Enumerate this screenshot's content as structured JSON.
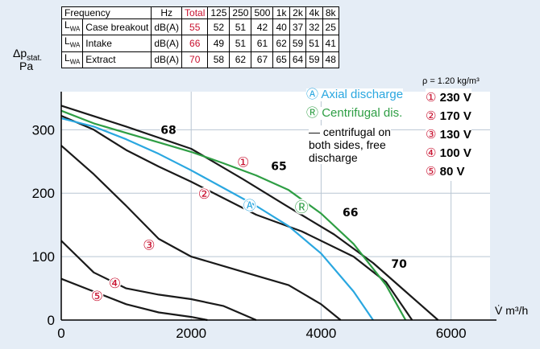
{
  "table": {
    "header": [
      "Frequency",
      "Hz",
      "Total",
      "125",
      "250",
      "500",
      "1k",
      "2k",
      "4k",
      "8k"
    ],
    "rows": [
      {
        "symbol": "L",
        "sub": "WA",
        "label": "Case breakout",
        "unit": "dB(A)",
        "total": "55",
        "values": [
          "52",
          "51",
          "42",
          "40",
          "37",
          "32",
          "25"
        ]
      },
      {
        "symbol": "L",
        "sub": "WA",
        "label": "Intake",
        "unit": "dB(A)",
        "total": "66",
        "values": [
          "49",
          "51",
          "61",
          "62",
          "59",
          "51",
          "41"
        ]
      },
      {
        "symbol": "L",
        "sub": "WA",
        "label": "Extract",
        "unit": "dB(A)",
        "total": "70",
        "values": [
          "58",
          "62",
          "67",
          "65",
          "64",
          "59",
          "48"
        ]
      }
    ]
  },
  "ylabel": {
    "symbol": "Δp",
    "sub": "stat.",
    "unit": "Pa"
  },
  "xlabel": "V̇ m³/h",
  "density": "ρ = 1.20 kg/m³",
  "legend": {
    "axial": {
      "symbol": "Ⓐ",
      "label": "Axial discharge"
    },
    "centrifugal": {
      "symbol": "Ⓡ",
      "label": "Centrifugal dis."
    },
    "both_lines": [
      "— centrifugal on",
      "both sides, free",
      "discharge"
    ],
    "voltages": [
      {
        "symbol": "①",
        "label": "230 V"
      },
      {
        "symbol": "②",
        "label": "170 V"
      },
      {
        "symbol": "③",
        "label": "130 V"
      },
      {
        "symbol": "④",
        "label": "100 V"
      },
      {
        "symbol": "⑤",
        "label": "80 V"
      }
    ]
  },
  "colors": {
    "background": "#e5edf6",
    "plot": "#ffffff",
    "black_curve": "#1a1a1a",
    "axial": "#2aa7e0",
    "centrifugal": "#2e9e44",
    "red": "#c8102e",
    "grid": "#b9c6d3"
  },
  "chart_data": {
    "type": "line",
    "xlabel": "V̇ m³/h",
    "ylabel": "Δpstat. Pa",
    "xlim": [
      0,
      6600
    ],
    "ylim": [
      0,
      360
    ],
    "xticks": [
      0,
      2000,
      4000,
      6000
    ],
    "yticks": [
      0,
      100,
      200,
      300
    ],
    "grid": true,
    "series": [
      {
        "name": "230 V",
        "color": "black",
        "x": [
          0,
          1000,
          2000,
          2800,
          3500,
          4200,
          4800,
          5300,
          5800
        ],
        "y": [
          338,
          305,
          270,
          222,
          178,
          135,
          90,
          45,
          0
        ]
      },
      {
        "name": "170 V",
        "color": "black",
        "x": [
          0,
          500,
          1000,
          1500,
          2000,
          2500,
          3000,
          3700,
          4500,
          5000,
          5400
        ],
        "y": [
          322,
          300,
          268,
          242,
          218,
          192,
          166,
          140,
          100,
          60,
          0
        ]
      },
      {
        "name": "130 V",
        "color": "black",
        "x": [
          0,
          500,
          1000,
          1500,
          2000,
          2500,
          3000,
          3500,
          4000,
          4300
        ],
        "y": [
          275,
          230,
          180,
          128,
          100,
          85,
          70,
          55,
          25,
          0
        ]
      },
      {
        "name": "100 V",
        "color": "black",
        "x": [
          0,
          500,
          1000,
          1500,
          2000,
          2500,
          3000
        ],
        "y": [
          125,
          75,
          50,
          40,
          33,
          22,
          0
        ]
      },
      {
        "name": "80 V",
        "color": "black",
        "x": [
          0,
          500,
          1000,
          1500,
          2000,
          2250
        ],
        "y": [
          65,
          45,
          25,
          12,
          5,
          0
        ]
      },
      {
        "name": "Axial discharge",
        "color": "blue",
        "x": [
          0,
          500,
          1000,
          1500,
          2000,
          2500,
          3000,
          3500,
          4000,
          4500,
          4800
        ],
        "y": [
          318,
          305,
          285,
          262,
          236,
          208,
          180,
          148,
          105,
          45,
          0
        ]
      },
      {
        "name": "Centrifugal dis.",
        "color": "green",
        "x": [
          0,
          500,
          1000,
          1500,
          2000,
          2500,
          3000,
          3500,
          4000,
          4500,
          5000,
          5300
        ],
        "y": [
          330,
          310,
          295,
          280,
          265,
          247,
          228,
          205,
          168,
          120,
          55,
          0
        ]
      }
    ],
    "annotations": [
      {
        "text": "68",
        "x": 1650,
        "y": 300
      },
      {
        "text": "65",
        "x": 3350,
        "y": 243
      },
      {
        "text": "66",
        "x": 4450,
        "y": 170
      },
      {
        "text": "70",
        "x": 5200,
        "y": 89
      },
      {
        "text": "①",
        "x": 2800,
        "y": 248
      },
      {
        "text": "②",
        "x": 2200,
        "y": 198
      },
      {
        "text": "③",
        "x": 1350,
        "y": 117
      },
      {
        "text": "④",
        "x": 825,
        "y": 57
      },
      {
        "text": "⑤",
        "x": 550,
        "y": 37
      },
      {
        "text": "Ⓐ",
        "x": 2900,
        "y": 180
      },
      {
        "text": "Ⓡ",
        "x": 3700,
        "y": 177
      }
    ]
  }
}
